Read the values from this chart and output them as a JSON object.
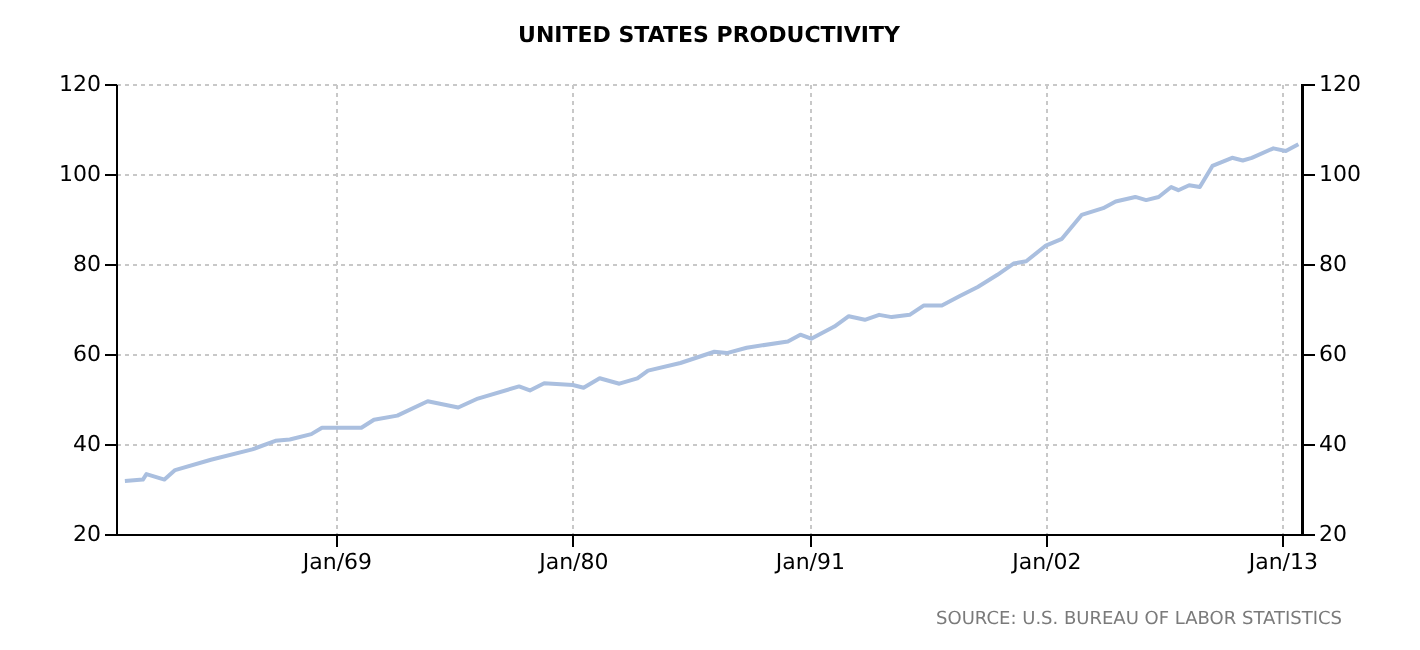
{
  "chart_data": {
    "type": "line",
    "title": "UNITED STATES PRODUCTIVITY",
    "x": [
      "1959-03",
      "1960-01",
      "1960-03",
      "1961-01",
      "1961-07",
      "1963-03",
      "1965-02",
      "1966-03",
      "1966-11",
      "1967-11",
      "1968-05",
      "1970-03",
      "1970-10",
      "1971-11",
      "1973-04",
      "1974-09",
      "1975-08",
      "1977-07",
      "1978-01",
      "1978-09",
      "1980-01",
      "1980-07",
      "1981-04",
      "1982-03",
      "1983-01",
      "1983-07",
      "1985-01",
      "1986-08",
      "1987-03",
      "1988-02",
      "1990-01",
      "1990-08",
      "1991-02",
      "1992-03",
      "1992-11",
      "1993-08",
      "1994-04",
      "1994-11",
      "1995-09",
      "1996-05",
      "1997-03",
      "1998-01",
      "1998-11",
      "1999-10",
      "2000-07",
      "2001-02",
      "2002-01",
      "2002-10",
      "2003-09",
      "2004-09",
      "2005-04",
      "2006-03",
      "2006-09",
      "2007-04",
      "2007-11",
      "2008-03",
      "2008-09",
      "2009-03",
      "2009-10",
      "2010-09",
      "2011-03",
      "2011-08",
      "2012-08",
      "2013-03",
      "2013-10"
    ],
    "series": [
      {
        "color": "#aabfdf",
        "values": [
          31.8,
          32.1,
          33.3,
          32.1,
          34.2,
          36.5,
          38.8,
          40.7,
          41.0,
          42.2,
          43.6,
          43.6,
          45.4,
          46.3,
          49.5,
          48.1,
          50.1,
          52.8,
          51.9,
          53.5,
          53.1,
          52.5,
          54.6,
          53.4,
          54.6,
          56.3,
          58.0,
          60.5,
          60.2,
          61.4,
          62.8,
          64.3,
          63.4,
          66.1,
          68.4,
          67.6,
          68.7,
          68.2,
          68.7,
          70.8,
          70.8,
          72.9,
          74.9,
          77.6,
          80.1,
          80.6,
          84.1,
          85.6,
          90.9,
          92.4,
          93.9,
          94.9,
          94.2,
          94.9,
          97.1,
          96.4,
          97.5,
          97.1,
          101.8,
          103.6,
          103.0,
          103.6,
          105.7,
          105.1,
          106.6
        ]
      }
    ],
    "xlim": [
      "1958-10",
      "2013-12"
    ],
    "xticks": [
      {
        "value": "1969-01",
        "label": "Jan/69"
      },
      {
        "value": "1980-01",
        "label": "Jan/80"
      },
      {
        "value": "1991-01",
        "label": "Jan/91"
      },
      {
        "value": "2002-01",
        "label": "Jan/02"
      },
      {
        "value": "2013-01",
        "label": "Jan/13"
      }
    ],
    "ylim": [
      20,
      120
    ],
    "yticks": [
      20,
      40,
      60,
      80,
      100,
      120
    ],
    "y2lim": [
      20,
      120
    ],
    "y2ticks": [
      20,
      40,
      60,
      80,
      100,
      120
    ],
    "grid": true,
    "marker": "none",
    "line_style": "solid",
    "annotations": [
      "SOURCE: U.S. BUREAU OF LABOR STATISTICS"
    ]
  }
}
